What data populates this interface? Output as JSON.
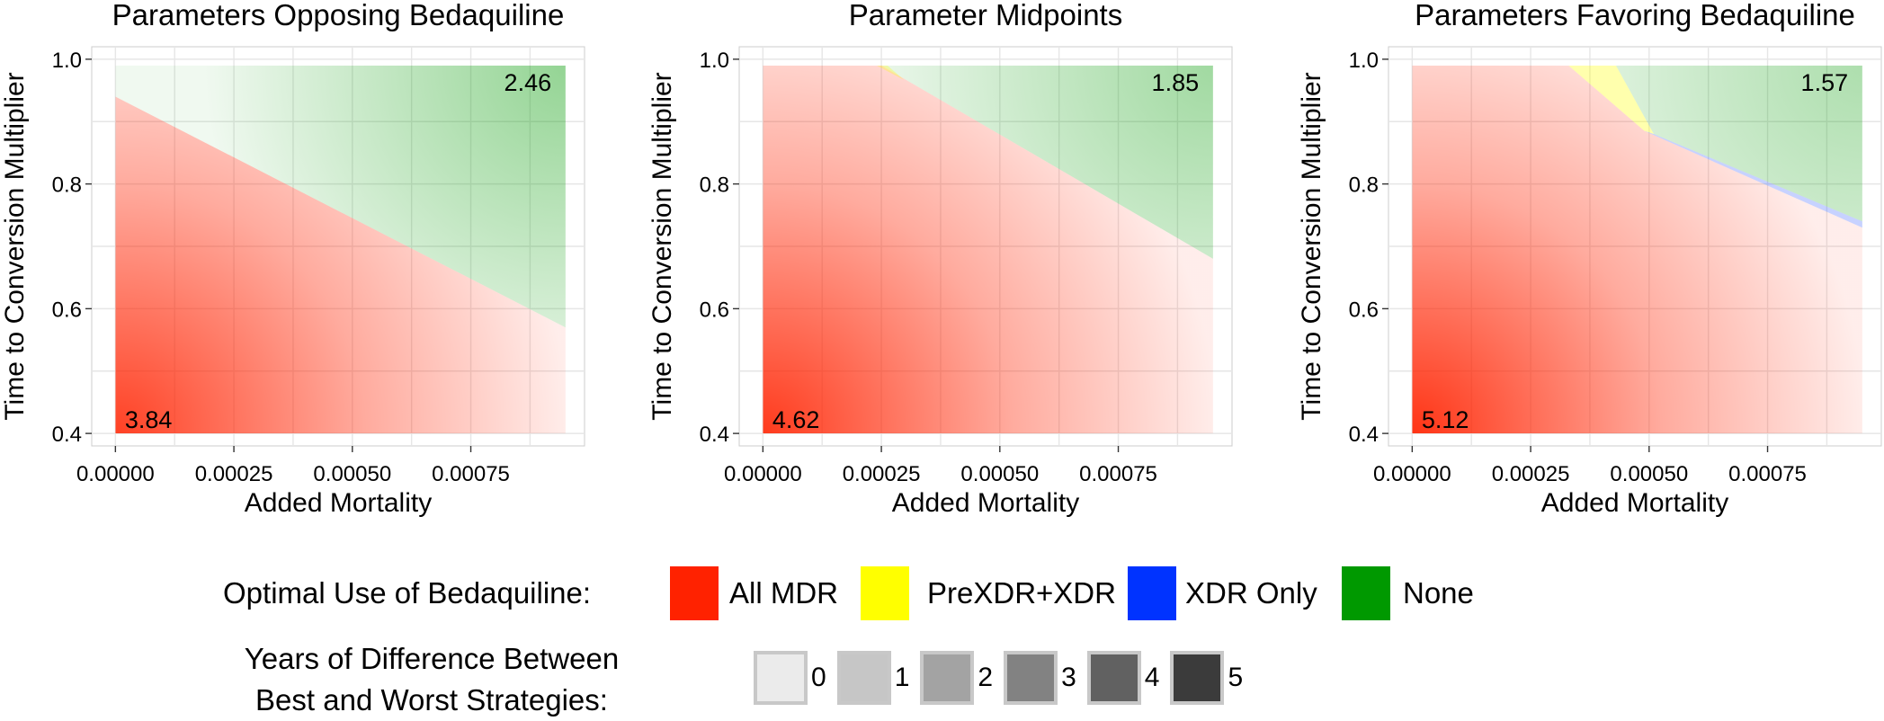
{
  "chart_data": [
    {
      "type": "heatmap",
      "title": "Parameters Opposing Bedaquiline",
      "xlabel": "Added Mortality",
      "ylabel": "Time to Conversion Multiplier",
      "x_ticks": [
        "0.00000",
        "0.00025",
        "0.00050",
        "0.00075"
      ],
      "x_tick_values": [
        0,
        0.00025,
        0.0005,
        0.00075
      ],
      "y_ticks": [
        "0.4",
        "0.6",
        "0.8",
        "1.0"
      ],
      "y_tick_values": [
        0.4,
        0.6,
        0.8,
        1.0
      ],
      "xlim": [
        -5e-05,
        0.00099
      ],
      "ylim": [
        0.38,
        1.02
      ],
      "data_extent": {
        "x": [
          0.0,
          0.00095
        ],
        "y": [
          0.4,
          0.99
        ]
      },
      "boundaries": [
        {
          "from": "All MDR",
          "to": "None",
          "line": [
            [
              0.0,
              0.94
            ],
            [
              0.00095,
              0.57
            ]
          ]
        }
      ],
      "annotations": [
        {
          "text": "2.46",
          "x": 0.00092,
          "y": 0.965,
          "anchor": "end"
        },
        {
          "text": "3.84",
          "x": 2e-05,
          "y": 0.425,
          "anchor": "start"
        }
      ],
      "max_difference": 3.84,
      "grid": true
    },
    {
      "type": "heatmap",
      "title": "Parameter Midpoints",
      "xlabel": "Added Mortality",
      "ylabel": "Time to Conversion Multiplier",
      "x_ticks": [
        "0.00000",
        "0.00025",
        "0.00050",
        "0.00075"
      ],
      "x_tick_values": [
        0,
        0.00025,
        0.0005,
        0.00075
      ],
      "y_ticks": [
        "0.4",
        "0.6",
        "0.8",
        "1.0"
      ],
      "y_tick_values": [
        0.4,
        0.6,
        0.8,
        1.0
      ],
      "xlim": [
        -5e-05,
        0.00099
      ],
      "ylim": [
        0.38,
        1.02
      ],
      "data_extent": {
        "x": [
          0.0,
          0.00095
        ],
        "y": [
          0.4,
          0.99
        ]
      },
      "boundaries": [
        {
          "from": "All MDR",
          "to": "None",
          "line": [
            [
              0.00025,
              0.99
            ],
            [
              0.00095,
              0.68
            ]
          ]
        },
        {
          "from": "All MDR",
          "to": "PreXDR+XDR",
          "line": [
            [
              0.00024,
              0.99
            ],
            [
              0.00029,
              0.97
            ]
          ]
        }
      ],
      "annotations": [
        {
          "text": "1.85",
          "x": 0.00092,
          "y": 0.965,
          "anchor": "end"
        },
        {
          "text": "4.62",
          "x": 2e-05,
          "y": 0.425,
          "anchor": "start"
        }
      ],
      "max_difference": 4.62,
      "grid": true
    },
    {
      "type": "heatmap",
      "title": "Parameters Favoring Bedaquiline",
      "xlabel": "Added Mortality",
      "ylabel": "Time to Conversion Multiplier",
      "x_ticks": [
        "0.00000",
        "0.00025",
        "0.00050",
        "0.00075"
      ],
      "x_tick_values": [
        0,
        0.00025,
        0.0005,
        0.00075
      ],
      "y_ticks": [
        "0.4",
        "0.6",
        "0.8",
        "1.0"
      ],
      "y_tick_values": [
        0.4,
        0.6,
        0.8,
        1.0
      ],
      "xlim": [
        -5e-05,
        0.00099
      ],
      "ylim": [
        0.38,
        1.02
      ],
      "data_extent": {
        "x": [
          0.0,
          0.00095
        ],
        "y": [
          0.4,
          0.99
        ]
      },
      "boundaries": [
        {
          "from": "All MDR",
          "to": "PreXDR+XDR",
          "line": [
            [
              0.00033,
              0.99
            ],
            [
              0.00049,
              0.885
            ]
          ]
        },
        {
          "from": "PreXDR+XDR",
          "to": "None",
          "line": [
            [
              0.00043,
              0.99
            ],
            [
              0.00051,
              0.88
            ]
          ]
        },
        {
          "from": "All MDR",
          "to": "XDR Only",
          "line": [
            [
              0.00049,
              0.885
            ],
            [
              0.00095,
              0.73
            ]
          ]
        },
        {
          "from": "XDR Only",
          "to": "None",
          "line": [
            [
              0.00051,
              0.88
            ],
            [
              0.00095,
              0.74
            ]
          ]
        }
      ],
      "annotations": [
        {
          "text": "1.57",
          "x": 0.00092,
          "y": 0.965,
          "anchor": "end"
        },
        {
          "text": "5.12",
          "x": 2e-05,
          "y": 0.425,
          "anchor": "start"
        }
      ],
      "max_difference": 5.12,
      "grid": true
    }
  ],
  "legend": {
    "fill_title": "Optimal Use of Bedaquiline:",
    "fill_items": [
      {
        "label": "All MDR",
        "color": "#ff2200"
      },
      {
        "label": "PreXDR+XDR",
        "color": "#ffff00"
      },
      {
        "label": "XDR Only",
        "color": "#0033ff"
      },
      {
        "label": "None",
        "color": "#009900"
      }
    ],
    "alpha_title_line1": "Years of Difference Between",
    "alpha_title_line2": "Best and Worst Strategies:",
    "alpha_items": [
      {
        "label": "0",
        "color": "#ebebeb"
      },
      {
        "label": "1",
        "color": "#c6c6c6"
      },
      {
        "label": "2",
        "color": "#a3a3a3"
      },
      {
        "label": "3",
        "color": "#828282"
      },
      {
        "label": "4",
        "color": "#616161"
      },
      {
        "label": "5",
        "color": "#3b3b3b"
      }
    ]
  }
}
